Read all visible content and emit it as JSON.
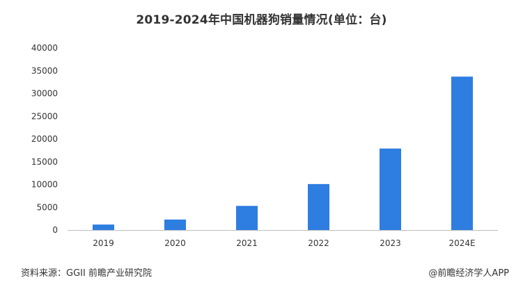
{
  "title": "2019-2024年中国机器狗销量情况(单位：台)",
  "chart_data": {
    "type": "bar",
    "categories": [
      "2019",
      "2020",
      "2021",
      "2022",
      "2023",
      "2024E"
    ],
    "values": [
      1200,
      2300,
      5300,
      10100,
      17900,
      33700
    ],
    "ylim": [
      0,
      40000
    ],
    "yticks": [
      0,
      5000,
      10000,
      15000,
      20000,
      25000,
      30000,
      35000,
      40000
    ],
    "grid": false,
    "bar_color": "#2e7de1"
  },
  "footer": {
    "source": "资料来源：GGII 前瞻产业研究院",
    "brand": "@前瞻经济学人APP"
  }
}
